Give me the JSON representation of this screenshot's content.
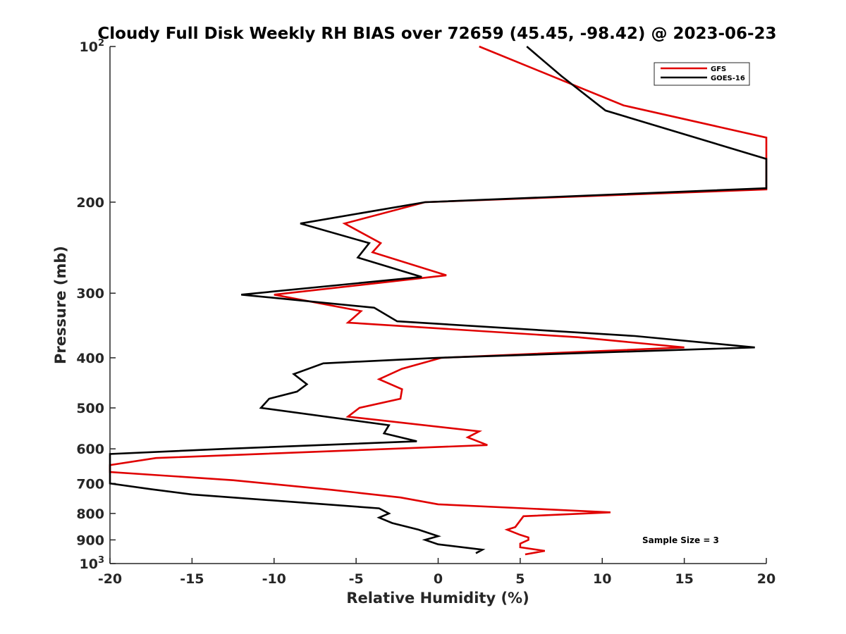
{
  "chart_data": {
    "type": "line",
    "title": "Cloudy Full Disk Weekly RH BIAS over 72659 (45.45, -98.42) @ 2023-06-23",
    "xlabel": "Relative Humidity (%)",
    "ylabel": "Pressure (mb)",
    "xlim": [
      -20,
      20
    ],
    "ylim": [
      100,
      1000
    ],
    "y_scale": "log",
    "y_reversed": true,
    "grid": false,
    "legend_position": "top-right",
    "x_ticks": [
      "-20",
      "-15",
      "-10",
      "-5",
      "0",
      "5",
      "10",
      "15",
      "20"
    ],
    "y_ticks": [
      {
        "value": 100,
        "base": "10",
        "exp": "2"
      },
      {
        "value": 200,
        "label": "200"
      },
      {
        "value": 300,
        "label": "300"
      },
      {
        "value": 400,
        "label": "400"
      },
      {
        "value": 500,
        "label": "500"
      },
      {
        "value": 600,
        "label": "600"
      },
      {
        "value": 700,
        "label": "700"
      },
      {
        "value": 800,
        "label": "800"
      },
      {
        "value": 900,
        "label": "900"
      },
      {
        "value": 1000,
        "base": "10",
        "exp": "3"
      }
    ],
    "series": [
      {
        "name": "GFS",
        "color": "#e00000",
        "points": [
          {
            "x": 2.5,
            "y": 100
          },
          {
            "x": 6.3,
            "y": 112
          },
          {
            "x": 11.3,
            "y": 130
          },
          {
            "x": 20,
            "y": 150
          },
          {
            "x": 20,
            "y": 189
          },
          {
            "x": -0.8,
            "y": 200
          },
          {
            "x": -5.7,
            "y": 220
          },
          {
            "x": -3.5,
            "y": 240
          },
          {
            "x": -4.0,
            "y": 250
          },
          {
            "x": 0.5,
            "y": 277
          },
          {
            "x": -10.0,
            "y": 302
          },
          {
            "x": -4.7,
            "y": 325
          },
          {
            "x": -5.5,
            "y": 342
          },
          {
            "x": 8.5,
            "y": 365
          },
          {
            "x": 15.0,
            "y": 382
          },
          {
            "x": 0.2,
            "y": 400
          },
          {
            "x": -2.2,
            "y": 420
          },
          {
            "x": -3.6,
            "y": 440
          },
          {
            "x": -2.2,
            "y": 460
          },
          {
            "x": -2.3,
            "y": 480
          },
          {
            "x": -4.8,
            "y": 500
          },
          {
            "x": -5.5,
            "y": 520
          },
          {
            "x": 2.5,
            "y": 555
          },
          {
            "x": 1.8,
            "y": 570
          },
          {
            "x": 3.0,
            "y": 590
          },
          {
            "x": -17.2,
            "y": 625
          },
          {
            "x": -20.0,
            "y": 645
          },
          {
            "x": -20.0,
            "y": 665
          },
          {
            "x": -12.5,
            "y": 690
          },
          {
            "x": -6.5,
            "y": 720
          },
          {
            "x": -2.3,
            "y": 745
          },
          {
            "x": 0.0,
            "y": 768
          },
          {
            "x": 10.5,
            "y": 796
          },
          {
            "x": 5.2,
            "y": 810
          },
          {
            "x": 4.7,
            "y": 850
          },
          {
            "x": 4.2,
            "y": 860
          },
          {
            "x": 5.0,
            "y": 880
          },
          {
            "x": 5.5,
            "y": 890
          },
          {
            "x": 5.5,
            "y": 900
          },
          {
            "x": 5.0,
            "y": 915
          },
          {
            "x": 5.0,
            "y": 930
          },
          {
            "x": 6.5,
            "y": 945
          },
          {
            "x": 5.3,
            "y": 960
          }
        ]
      },
      {
        "name": "GOES-16",
        "color": "#000000",
        "points": [
          {
            "x": 5.4,
            "y": 100
          },
          {
            "x": 7.5,
            "y": 114
          },
          {
            "x": 10.2,
            "y": 133
          },
          {
            "x": 20,
            "y": 165
          },
          {
            "x": 20,
            "y": 188
          },
          {
            "x": -0.8,
            "y": 200
          },
          {
            "x": -8.4,
            "y": 220
          },
          {
            "x": -4.2,
            "y": 240
          },
          {
            "x": -4.9,
            "y": 256
          },
          {
            "x": -1.0,
            "y": 279
          },
          {
            "x": -12.0,
            "y": 302
          },
          {
            "x": -3.9,
            "y": 320
          },
          {
            "x": -2.5,
            "y": 340
          },
          {
            "x": 12.0,
            "y": 363
          },
          {
            "x": 19.3,
            "y": 382
          },
          {
            "x": 0.0,
            "y": 400
          },
          {
            "x": -7.0,
            "y": 410
          },
          {
            "x": -8.8,
            "y": 430
          },
          {
            "x": -8.0,
            "y": 450
          },
          {
            "x": -8.6,
            "y": 465
          },
          {
            "x": -10.3,
            "y": 480
          },
          {
            "x": -10.8,
            "y": 500
          },
          {
            "x": -3.0,
            "y": 540
          },
          {
            "x": -3.3,
            "y": 560
          },
          {
            "x": -1.3,
            "y": 580
          },
          {
            "x": -13.0,
            "y": 600
          },
          {
            "x": -20.0,
            "y": 614
          },
          {
            "x": -20.0,
            "y": 640
          },
          {
            "x": -20.0,
            "y": 660
          },
          {
            "x": -20.0,
            "y": 680
          },
          {
            "x": -20.0,
            "y": 700
          },
          {
            "x": -17.5,
            "y": 718
          },
          {
            "x": -15.0,
            "y": 735
          },
          {
            "x": -3.6,
            "y": 782
          },
          {
            "x": -3.0,
            "y": 800
          },
          {
            "x": -3.6,
            "y": 815
          },
          {
            "x": -2.8,
            "y": 835
          },
          {
            "x": -1.2,
            "y": 860
          },
          {
            "x": 0.0,
            "y": 885
          },
          {
            "x": -0.8,
            "y": 900
          },
          {
            "x": 0.0,
            "y": 918
          },
          {
            "x": 2.7,
            "y": 940
          },
          {
            "x": 2.3,
            "y": 955
          }
        ]
      }
    ],
    "annotation": "Sample Size = 3"
  }
}
